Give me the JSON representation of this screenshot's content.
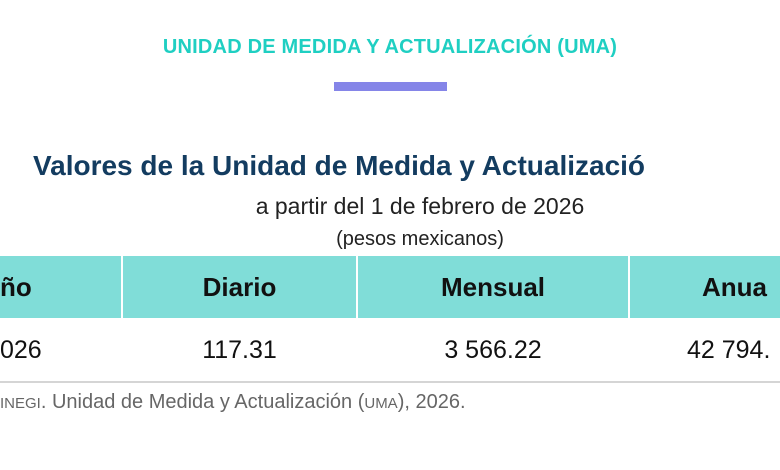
{
  "top_title": "UNIDAD DE MEDIDA Y ACTUALIZACIÓN (UMA)",
  "heading": "Valores de la Unidad de Medida y Actualizació",
  "subtitle": "a partir del 1 de febrero de 2026",
  "units": "(pesos mexicanos)",
  "table": {
    "headers": [
      "ño",
      "Diario",
      "Mensual",
      "Anua"
    ],
    "row": [
      "026",
      "117.31",
      "3 566.22",
      "42 794."
    ]
  },
  "source": {
    "prefix": "INEGI",
    "text1": ". Unidad de Medida y Actualización (",
    "abbr": "UMA",
    "text2": "), 2026."
  },
  "colors": {
    "title": "#1fcfc2",
    "bar": "#8585e8",
    "heading": "#133c60",
    "header_bg": "#80ddd8"
  }
}
